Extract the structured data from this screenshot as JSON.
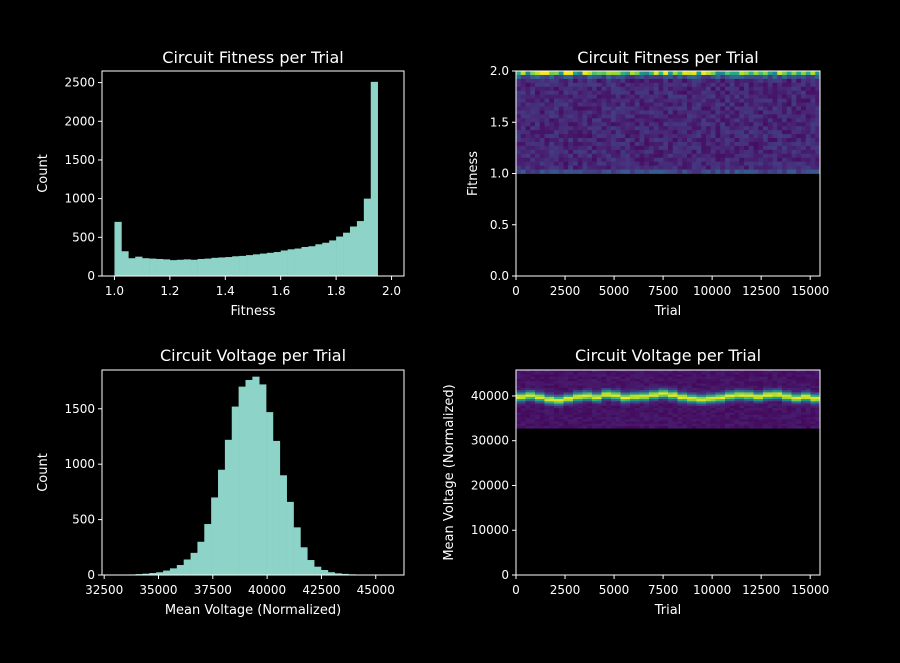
{
  "chart_data": [
    {
      "type": "bar",
      "title": "Circuit Fitness per Trial",
      "xlabel": "Fitness",
      "ylabel": "Count",
      "xlim": [
        0.955,
        2.045
      ],
      "ylim": [
        0,
        2650
      ],
      "xticks": [
        "1.0",
        "1.2",
        "1.4",
        "1.6",
        "1.8",
        "2.0"
      ],
      "yticks": [
        "0",
        "500",
        "1000",
        "1500",
        "2000",
        "2500"
      ],
      "bin_start": 1.0,
      "bin_width": 0.025,
      "values": [
        700,
        320,
        230,
        250,
        230,
        225,
        220,
        215,
        205,
        210,
        215,
        210,
        220,
        225,
        235,
        240,
        245,
        255,
        260,
        270,
        280,
        290,
        300,
        310,
        330,
        345,
        355,
        375,
        385,
        410,
        430,
        460,
        510,
        560,
        640,
        710,
        1000,
        2510
      ],
      "bar_color": "#8dd3c7"
    },
    {
      "type": "heatmap",
      "title": "Circuit Fitness per Trial",
      "xlabel": "Trial",
      "ylabel": "Fitness",
      "xlim": [
        0,
        15500
      ],
      "ylim": [
        0,
        2.0
      ],
      "xticks": [
        "0",
        "2500",
        "5000",
        "7500",
        "10000",
        "12500",
        "15000"
      ],
      "yticks": [
        "0.0",
        "0.5",
        "1.0",
        "1.5",
        "2.0"
      ],
      "band": [
        1.0,
        2.0
      ]
    },
    {
      "type": "bar",
      "title": "Circuit Voltage per Trial",
      "xlabel": "Mean Voltage (Normalized)",
      "ylabel": "Count",
      "xlim": [
        32400,
        46300
      ],
      "ylim": [
        0,
        1850
      ],
      "xticks": [
        "32500",
        "35000",
        "37500",
        "40000",
        "42500",
        "45000"
      ],
      "yticks": [
        "0",
        "500",
        "1000",
        "1500"
      ],
      "bin_start": 33000,
      "bin_width": 316,
      "values": [
        2,
        3,
        5,
        8,
        12,
        18,
        25,
        40,
        60,
        90,
        140,
        200,
        300,
        460,
        700,
        950,
        1220,
        1520,
        1700,
        1760,
        1790,
        1720,
        1470,
        1210,
        900,
        660,
        430,
        250,
        135,
        75,
        45,
        25,
        15,
        10,
        6,
        3,
        2,
        1,
        1,
        1,
        1,
        1
      ],
      "bar_color": "#8dd3c7"
    },
    {
      "type": "heatmap",
      "title": "Circuit Voltage per Trial",
      "xlabel": "Trial",
      "ylabel": "Mean Voltage (Normalized)",
      "xlim": [
        0,
        15500
      ],
      "ylim": [
        0,
        45800
      ],
      "xticks": [
        "0",
        "2500",
        "5000",
        "7500",
        "10000",
        "12500",
        "15000"
      ],
      "yticks": [
        "0",
        "10000",
        "20000",
        "30000",
        "40000"
      ],
      "band": [
        32800,
        45800
      ],
      "peak_track": [
        39800,
        40100,
        39700,
        39200,
        39000,
        39400,
        39800,
        40000,
        39700,
        40300,
        40100,
        39600,
        39800,
        39900,
        40200,
        40500,
        40200,
        39700,
        39400,
        39200,
        39400,
        39600,
        40000,
        40200,
        40100,
        39800,
        40200,
        40300,
        39900,
        39500,
        39800,
        39400
      ]
    }
  ]
}
